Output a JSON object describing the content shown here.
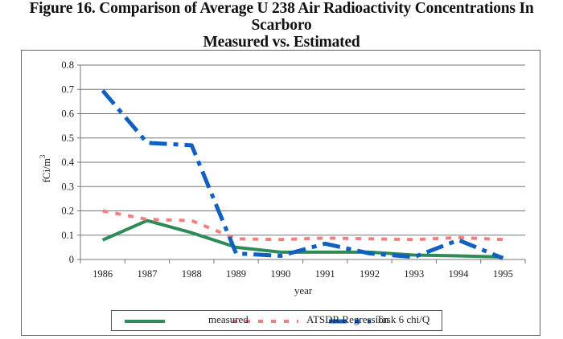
{
  "page": {
    "title_line1": "Figure 16. Comparison of Average U 238 Air Radioactivity Concentrations In Scarboro",
    "title_line2": "Measured vs. Estimated"
  },
  "chart_data": {
    "type": "line",
    "title": "Figure 16. Comparison of Average U 238 Air Radioactivity Concentrations In Scarboro Measured vs. Estimated",
    "xlabel": "year",
    "ylabel": "fCi/m3",
    "ylabel_main": "fCi/m",
    "ylabel_sup": "3",
    "categories": [
      "1986",
      "1987",
      "1988",
      "1989",
      "1990",
      "1991",
      "1992",
      "1993",
      "1994",
      "1995"
    ],
    "ylim": [
      0,
      0.8
    ],
    "yticks": [
      "0",
      "0.1",
      "0.2",
      "0.3",
      "0.4",
      "0.5",
      "0.6",
      "0.7",
      "0.8"
    ],
    "grid": true,
    "legend_position": "bottom",
    "series": [
      {
        "name": "measured",
        "style": "solid",
        "color": "#2e8b57",
        "values": [
          0.08,
          0.16,
          0.11,
          0.05,
          0.03,
          0.03,
          0.03,
          0.018,
          0.015,
          0.01
        ]
      },
      {
        "name": "ATSDR Regression",
        "style": "dotted",
        "color": "#f08080",
        "values": [
          0.2,
          0.165,
          0.16,
          0.085,
          0.082,
          0.088,
          0.085,
          0.082,
          0.09,
          0.082
        ]
      },
      {
        "name": "Task 6 chi/Q",
        "style": "dashdot",
        "color": "#1060c0",
        "values": [
          0.695,
          0.48,
          0.47,
          0.025,
          0.015,
          0.065,
          0.025,
          0.01,
          0.08,
          0.005
        ]
      }
    ]
  }
}
